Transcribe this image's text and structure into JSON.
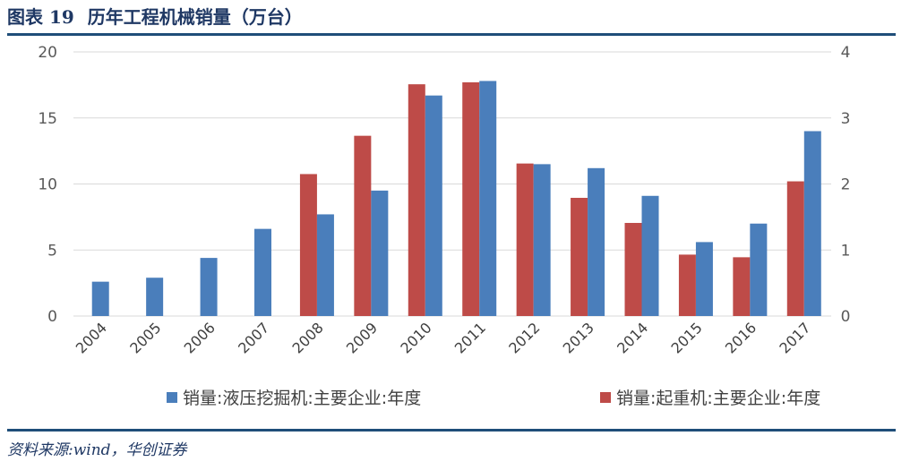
{
  "header": {
    "figure_number": "图表 19",
    "title": "历年工程机械销量（万台）"
  },
  "source": "资料来源:wind，华创证券",
  "colors": {
    "excavator": "#4a7ebb",
    "crane": "#be4b48",
    "rule": "#1f4e79",
    "title": "#1f3864"
  },
  "chart_data": {
    "type": "bar",
    "categories": [
      "2004",
      "2005",
      "2006",
      "2007",
      "2008",
      "2009",
      "2010",
      "2011",
      "2012",
      "2013",
      "2014",
      "2015",
      "2016",
      "2017"
    ],
    "series": [
      {
        "name": "销量:液压挖掘机:主要企业:年度",
        "axis": "left",
        "color": "#4a7ebb",
        "values": [
          2.6,
          2.9,
          4.4,
          6.6,
          7.7,
          9.5,
          16.7,
          17.8,
          11.5,
          11.2,
          9.1,
          5.6,
          7.0,
          14.0
        ]
      },
      {
        "name": "销量:起重机:主要企业:年度",
        "axis": "right",
        "color": "#be4b48",
        "values": [
          null,
          null,
          null,
          null,
          2.15,
          2.73,
          3.51,
          3.54,
          2.31,
          1.79,
          1.41,
          0.93,
          0.89,
          2.04
        ]
      }
    ],
    "yleft": {
      "min": 0,
      "max": 20,
      "ticks": [
        "0",
        "5",
        "10",
        "15",
        "20"
      ]
    },
    "yright": {
      "min": 0,
      "max": 4,
      "ticks": [
        "0",
        "1",
        "2",
        "3",
        "4"
      ]
    },
    "xlabel": "",
    "ylabel": "",
    "grid": true,
    "legend_position": "bottom"
  }
}
